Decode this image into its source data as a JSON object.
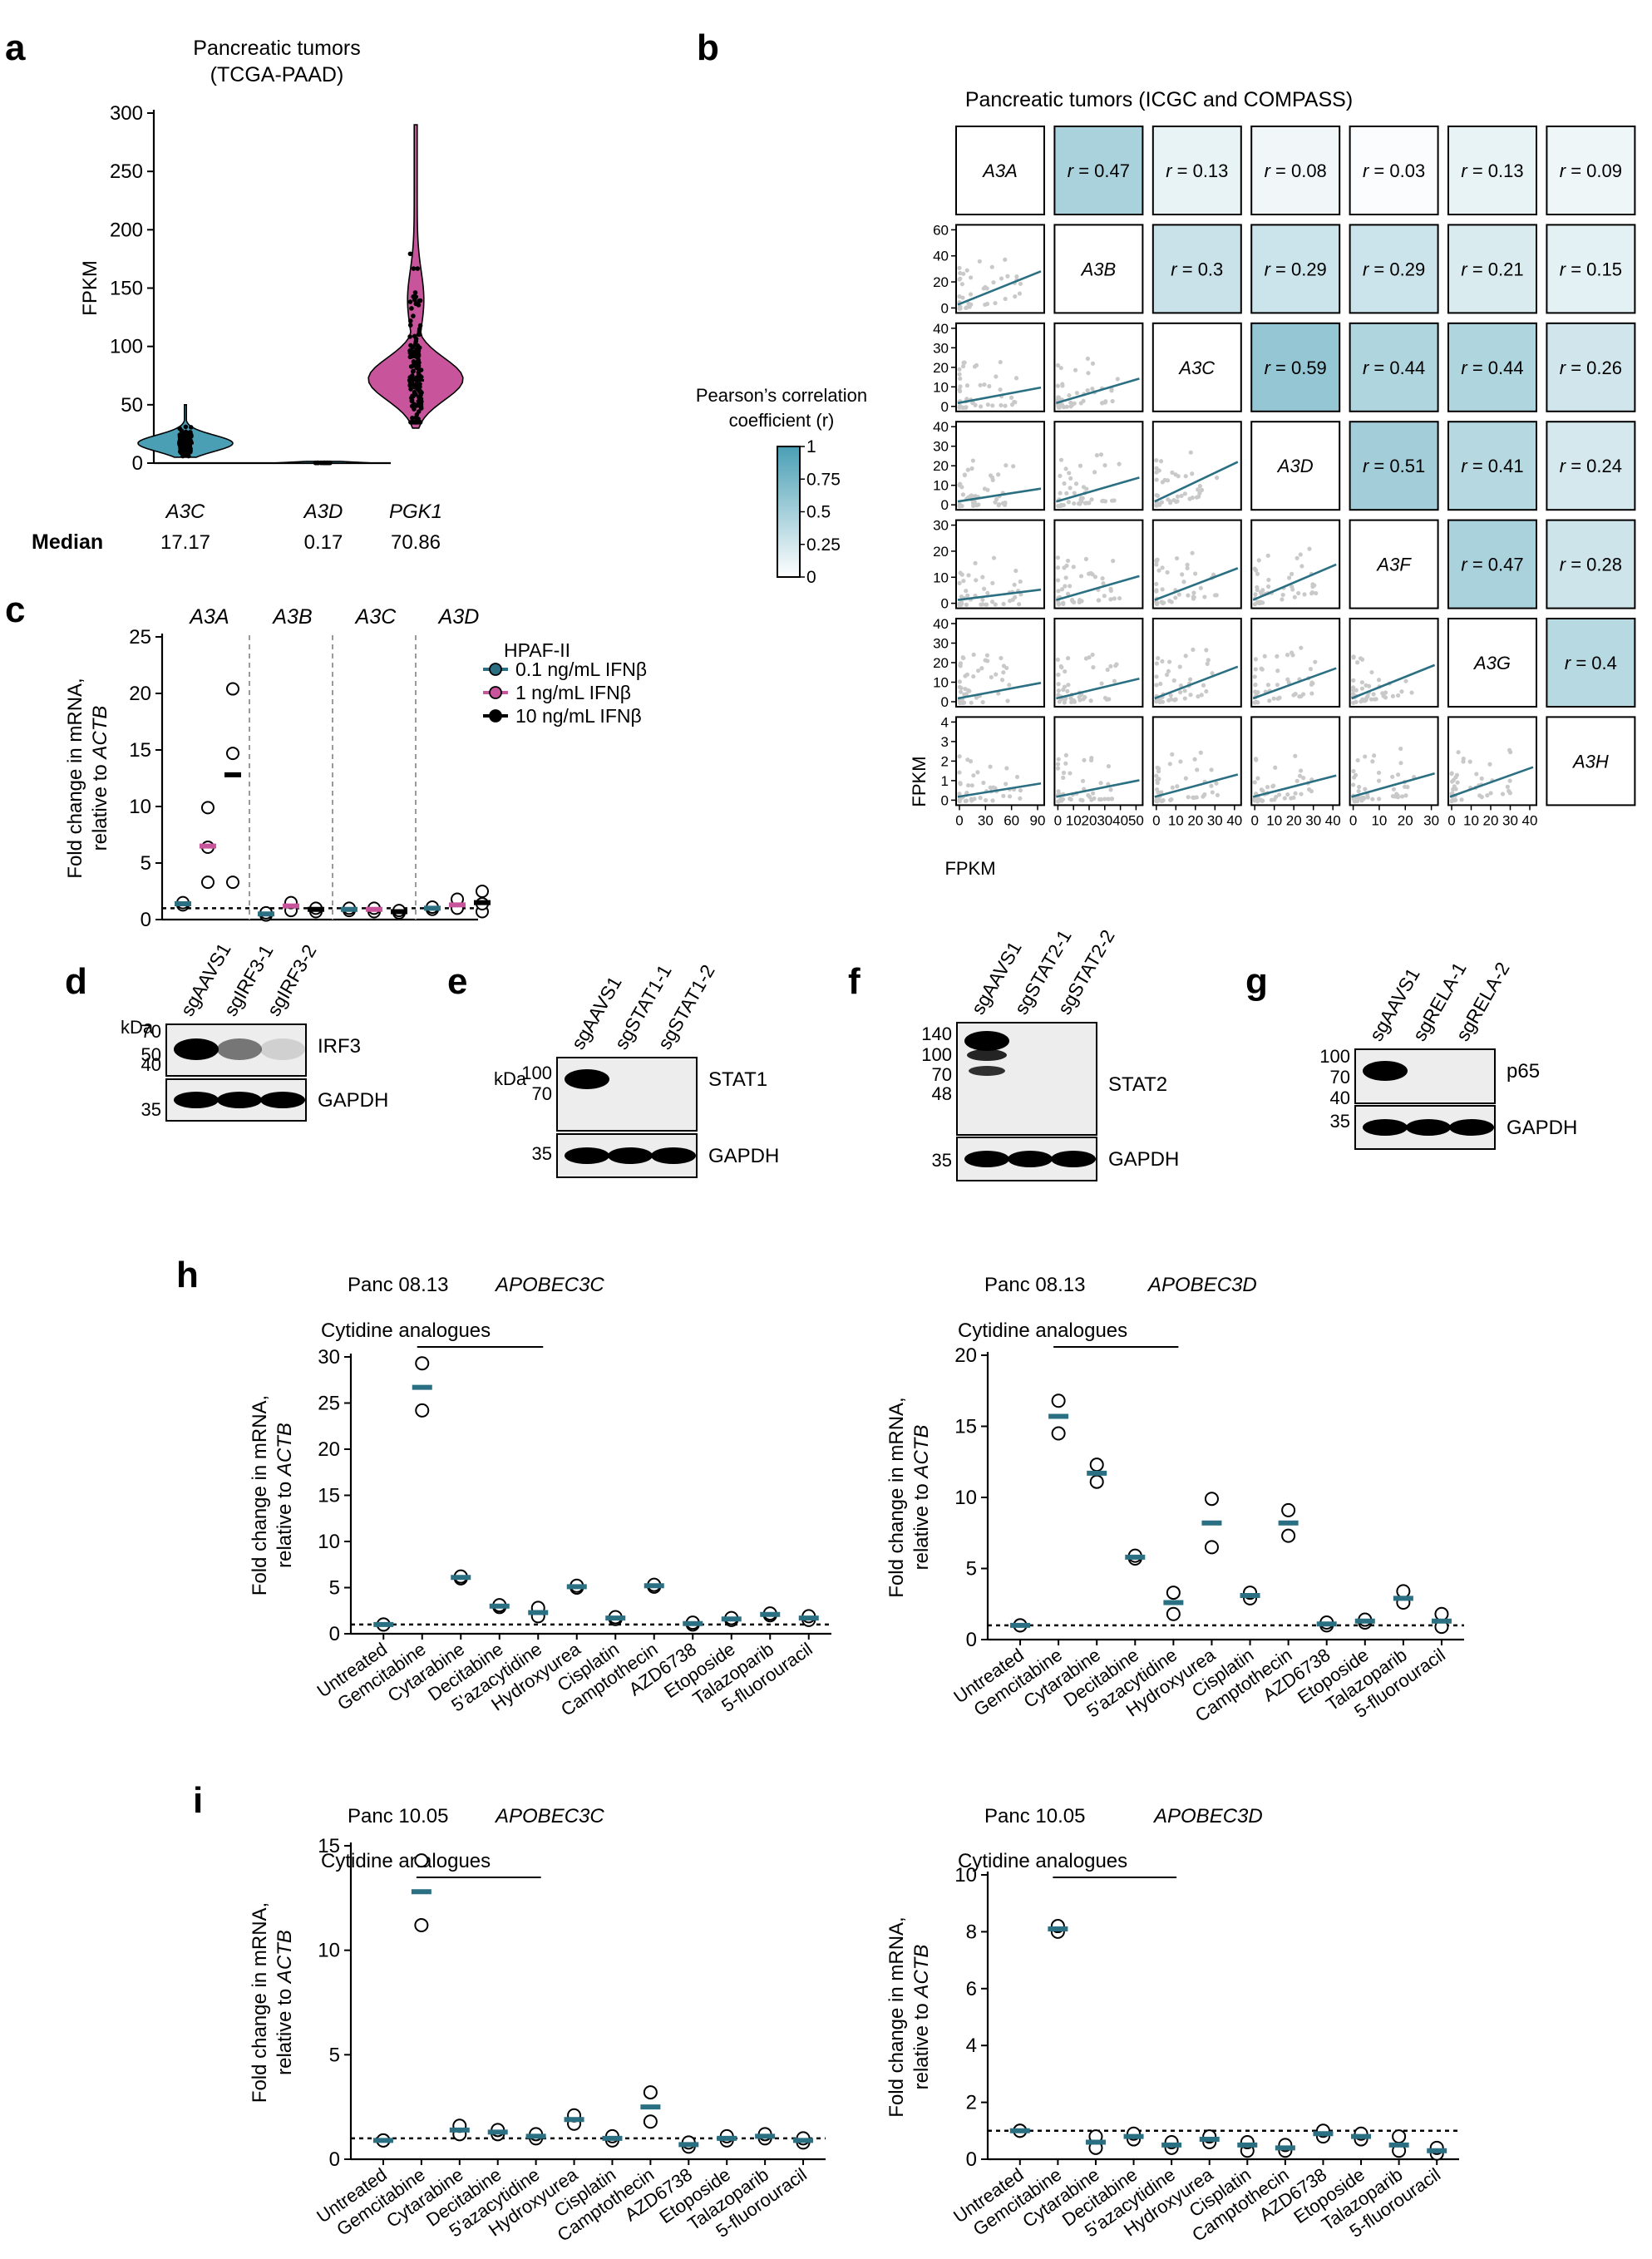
{
  "colors": {
    "teal": "#2a6f82",
    "teal_light": "#4a9fb5",
    "pink": "#c8559b",
    "black": "#000000",
    "grey_points": "#c9c9c9",
    "heat_max": "#4a9fb5"
  },
  "panel_labels": {
    "a": "a",
    "b": "b",
    "c": "c",
    "d": "d",
    "e": "e",
    "f": "f",
    "g": "g",
    "h": "h",
    "i": "i"
  },
  "panel_a": {
    "title_line1": "Pancreatic tumors",
    "title_line2": "(TCGA-PAAD)",
    "median_label": "Median"
  },
  "panel_b": {
    "title": "Pancreatic tumors (ICGC and COMPASS)",
    "legend_title_line1": "Pearson’s correlation",
    "legend_title_line2": "coefficient (r)",
    "x_axis_label": "FPKM",
    "y_axis_label": "FPKM"
  },
  "panel_c": {
    "legend_title": "HPAF-II",
    "legend_items": [
      "0.1 ng/mL IFNβ",
      "1 ng/mL IFNβ",
      "10 ng/mL IFNβ"
    ]
  },
  "blots": {
    "kda": "kDa",
    "d": {
      "lanes": [
        "sgAAVS1",
        "sgIRF3-1",
        "sgIRF3-2"
      ],
      "marker_top": [
        "70",
        "50"
      ],
      "marker_bottom": [
        "40",
        "35"
      ],
      "protein": "IRF3",
      "control": "GAPDH"
    },
    "e": {
      "lanes": [
        "sgAAVS1",
        "sgSTAT1-1",
        "sgSTAT1-2"
      ],
      "marker_top": [
        "100",
        "70"
      ],
      "marker_bottom": [
        "35"
      ],
      "protein": "STAT1",
      "control": "GAPDH"
    },
    "f": {
      "lanes": [
        "sgAAVS1",
        "sgSTAT2-1",
        "sgSTAT2-2"
      ],
      "marker_top": [
        "140",
        "100",
        "70",
        "48"
      ],
      "marker_bottom": [
        "35"
      ],
      "protein": "STAT2",
      "control": "GAPDH"
    },
    "g": {
      "lanes": [
        "sgAAVS1",
        "sgRELA-1",
        "sgRELA-2"
      ],
      "marker_top": [
        "100",
        "70"
      ],
      "marker_bottom": [
        "40",
        "35"
      ],
      "protein": "p65",
      "control": "GAPDH"
    }
  },
  "panel_h_i_common": {
    "bracket_label": "Cytidine analogues"
  },
  "chart_data": [
    {
      "id": "a",
      "type": "violin",
      "title": "Pancreatic tumors (TCGA-PAAD)",
      "ylabel": "FPKM",
      "ylim": [
        0,
        300
      ],
      "yticks": [
        0,
        50,
        100,
        150,
        200,
        250,
        300
      ],
      "categories": [
        "A3C",
        "A3D",
        "PGK1"
      ],
      "medians": [
        17.17,
        0.17,
        70.86
      ],
      "median_labels": [
        "17.17",
        "0.17",
        "70.86"
      ],
      "ranges": [
        [
          5,
          50
        ],
        [
          0,
          1
        ],
        [
          30,
          290
        ]
      ]
    },
    {
      "id": "b",
      "type": "heatmap",
      "title": "Pancreatic tumors (ICGC and COMPASS)",
      "genes": [
        "A3A",
        "A3B",
        "A3C",
        "A3D",
        "A3F",
        "A3G",
        "A3H"
      ],
      "correlations": [
        [
          "A3A",
          "A3B",
          0.47
        ],
        [
          "A3A",
          "A3C",
          0.13
        ],
        [
          "A3A",
          "A3D",
          0.08
        ],
        [
          "A3A",
          "A3F",
          0.03
        ],
        [
          "A3A",
          "A3G",
          0.13
        ],
        [
          "A3A",
          "A3H",
          0.09
        ],
        [
          "A3B",
          "A3C",
          0.3
        ],
        [
          "A3B",
          "A3D",
          0.29
        ],
        [
          "A3B",
          "A3F",
          0.29
        ],
        [
          "A3B",
          "A3G",
          0.21
        ],
        [
          "A3B",
          "A3H",
          0.15
        ],
        [
          "A3C",
          "A3D",
          0.59
        ],
        [
          "A3C",
          "A3F",
          0.44
        ],
        [
          "A3C",
          "A3G",
          0.44
        ],
        [
          "A3C",
          "A3H",
          0.26
        ],
        [
          "A3D",
          "A3F",
          0.51
        ],
        [
          "A3D",
          "A3G",
          0.41
        ],
        [
          "A3D",
          "A3H",
          0.24
        ],
        [
          "A3F",
          "A3G",
          0.47
        ],
        [
          "A3F",
          "A3H",
          0.28
        ],
        [
          "A3G",
          "A3H",
          0.4
        ]
      ],
      "row_yticks": [
        [],
        [
          "0",
          "20",
          "40",
          "60"
        ],
        [
          "0",
          "10",
          "20",
          "30",
          "40"
        ],
        [
          "0",
          "10",
          "20",
          "30",
          "40"
        ],
        [
          "0",
          "10",
          "20",
          "30"
        ],
        [
          "0",
          "10",
          "20",
          "30",
          "40"
        ],
        [
          "0",
          "1",
          "2",
          "3",
          "4"
        ]
      ],
      "col_xticks": [
        [
          "0",
          "30",
          "60",
          "90"
        ],
        [
          "0",
          "10",
          "20",
          "30",
          "40",
          "50"
        ],
        [
          "0",
          "10",
          "20",
          "30",
          "40"
        ],
        [
          "0",
          "10",
          "20",
          "30",
          "40"
        ],
        [
          "0",
          "10",
          "20",
          "30"
        ],
        [
          "0",
          "10",
          "20",
          "30",
          "40"
        ],
        []
      ],
      "colorbar": {
        "min": 0,
        "max": 1,
        "ticks": [
          "0",
          "0.25",
          "0.5",
          "0.75",
          "1"
        ]
      }
    },
    {
      "id": "c",
      "type": "scatter",
      "ylabel_line1": "Fold change in mRNA,",
      "ylabel_line2": "relative to ACTB",
      "ylim": [
        0,
        25
      ],
      "yticks": [
        0,
        5,
        10,
        15,
        20,
        25
      ],
      "groups": [
        "A3A",
        "A3B",
        "A3C",
        "A3D"
      ],
      "series": [
        {
          "name": "0.1 ng/mL IFNβ",
          "color": "#2a6f82",
          "values": [
            [
              1.4,
              1.3,
              1.5
            ],
            [
              0.5,
              0.4,
              0.6
            ],
            [
              0.9,
              0.8,
              1.0
            ],
            [
              1.0,
              0.9,
              1.1
            ]
          ],
          "means": [
            1.4,
            0.5,
            0.9,
            1.0
          ]
        },
        {
          "name": "1 ng/mL IFNβ",
          "color": "#c8559b",
          "values": [
            [
              3.3,
              6.4,
              9.9
            ],
            [
              1.2,
              0.8,
              1.5
            ],
            [
              0.9,
              0.7,
              1.0
            ],
            [
              1.2,
              1.0,
              1.8
            ]
          ],
          "means": [
            6.5,
            1.2,
            0.9,
            1.3
          ]
        },
        {
          "name": "10 ng/mL IFNβ",
          "color": "#000000",
          "values": [
            [
              3.3,
              14.7,
              20.4
            ],
            [
              0.9,
              0.7,
              1.0
            ],
            [
              0.7,
              0.6,
              0.8
            ],
            [
              0.7,
              1.4,
              2.5
            ]
          ],
          "means": [
            12.8,
            0.9,
            0.7,
            1.5
          ]
        }
      ],
      "reference_line": 1
    },
    {
      "id": "h-left",
      "type": "scatter",
      "title_sample": "Panc 08.13",
      "title_gene": "APOBEC3C",
      "ylabel_line1": "Fold change in mRNA,",
      "ylabel_line2": "relative to ACTB",
      "ylim": [
        0,
        30
      ],
      "yticks": [
        0,
        5,
        10,
        15,
        20,
        25,
        30
      ],
      "categories": [
        "Untreated",
        "Gemcitabine",
        "Cytarabine",
        "Decitabine",
        "5'azacytidine",
        "Hydroxyurea",
        "Cisplatin",
        "Camptothecin",
        "AZD6738",
        "Etoposide",
        "Talazoparib",
        "5-fluorouracil"
      ],
      "means": [
        1.0,
        26.7,
        6.1,
        3.0,
        2.3,
        5.1,
        1.7,
        5.2,
        1.1,
        1.6,
        2.1,
        1.7
      ],
      "points": [
        [
          1.0,
          1.0
        ],
        [
          24.2,
          29.3
        ],
        [
          6.0,
          6.2
        ],
        [
          2.9,
          3.1
        ],
        [
          1.9,
          2.8
        ],
        [
          5.0,
          5.2
        ],
        [
          1.6,
          1.8
        ],
        [
          5.1,
          5.3
        ],
        [
          1.0,
          1.2
        ],
        [
          1.5,
          1.7
        ],
        [
          2.0,
          2.2
        ],
        [
          1.5,
          1.9
        ]
      ],
      "reference_line": 1
    },
    {
      "id": "h-right",
      "type": "scatter",
      "title_sample": "Panc 08.13",
      "title_gene": "APOBEC3D",
      "ylabel_line1": "Fold change in mRNA,",
      "ylabel_line2": "relative to ACTB",
      "ylim": [
        0,
        20
      ],
      "yticks": [
        0,
        5,
        10,
        15,
        20
      ],
      "categories": [
        "Untreated",
        "Gemcitabine",
        "Cytarabine",
        "Decitabine",
        "5'azacytidine",
        "Hydroxyurea",
        "Cisplatin",
        "Camptothecin",
        "AZD6738",
        "Etoposide",
        "Talazoparib",
        "5-fluorouracil"
      ],
      "means": [
        1.0,
        15.7,
        11.7,
        5.8,
        2.6,
        8.2,
        3.1,
        8.2,
        1.1,
        1.3,
        2.9,
        1.3
      ],
      "points": [
        [
          1.0,
          1.0
        ],
        [
          14.5,
          16.8
        ],
        [
          11.1,
          12.3
        ],
        [
          5.7,
          5.9
        ],
        [
          1.8,
          3.3
        ],
        [
          6.5,
          9.9
        ],
        [
          2.9,
          3.3
        ],
        [
          7.3,
          9.1
        ],
        [
          1.0,
          1.2
        ],
        [
          1.2,
          1.4
        ],
        [
          2.6,
          3.4
        ],
        [
          0.9,
          1.8
        ]
      ],
      "reference_line": 1
    },
    {
      "id": "i-left",
      "type": "scatter",
      "title_sample": "Panc 10.05",
      "title_gene": "APOBEC3C",
      "ylabel_line1": "Fold change in mRNA,",
      "ylabel_line2": "relative to ACTB",
      "ylim": [
        0,
        15
      ],
      "yticks": [
        0,
        5,
        10,
        15
      ],
      "categories": [
        "Untreated",
        "Gemcitabine",
        "Cytarabine",
        "Decitabine",
        "5'azacytidine",
        "Hydroxyurea",
        "Cisplatin",
        "Camptothecin",
        "AZD6738",
        "Etoposide",
        "Talazoparib",
        "5-fluorouracil"
      ],
      "means": [
        0.9,
        12.8,
        1.4,
        1.3,
        1.1,
        1.9,
        1.0,
        2.5,
        0.7,
        1.0,
        1.1,
        0.9
      ],
      "points": [
        [
          0.9,
          0.9
        ],
        [
          11.2,
          14.3
        ],
        [
          1.2,
          1.6
        ],
        [
          1.2,
          1.4
        ],
        [
          1.0,
          1.2
        ],
        [
          1.7,
          2.1
        ],
        [
          0.9,
          1.1
        ],
        [
          1.8,
          3.2
        ],
        [
          0.6,
          0.8
        ],
        [
          0.9,
          1.1
        ],
        [
          1.0,
          1.2
        ],
        [
          0.8,
          1.0
        ]
      ],
      "reference_line": 1
    },
    {
      "id": "i-right",
      "type": "scatter",
      "title_sample": "Panc 10.05",
      "title_gene": "APOBEC3D",
      "ylabel_line1": "Fold change in mRNA,",
      "ylabel_line2": "relative to ACTB",
      "ylim": [
        0,
        10
      ],
      "yticks": [
        0,
        2,
        4,
        6,
        8,
        10
      ],
      "categories": [
        "Untreated",
        "Gemcitabine",
        "Cytarabine",
        "Decitabine",
        "5'azacytidine",
        "Hydroxyurea",
        "Cisplatin",
        "Camptothecin",
        "AZD6738",
        "Etoposide",
        "Talazoparib",
        "5-fluorouracil"
      ],
      "means": [
        1.0,
        8.1,
        0.6,
        0.8,
        0.5,
        0.7,
        0.5,
        0.4,
        0.9,
        0.8,
        0.5,
        0.3
      ],
      "points": [
        [
          1.0,
          1.0
        ],
        [
          8.0,
          8.2
        ],
        [
          0.4,
          0.8
        ],
        [
          0.7,
          0.9
        ],
        [
          0.4,
          0.6
        ],
        [
          0.6,
          0.8
        ],
        [
          0.3,
          0.6
        ],
        [
          0.3,
          0.5
        ],
        [
          0.8,
          1.0
        ],
        [
          0.7,
          0.9
        ],
        [
          0.3,
          0.8
        ],
        [
          0.2,
          0.4
        ]
      ],
      "reference_line": 1
    }
  ]
}
